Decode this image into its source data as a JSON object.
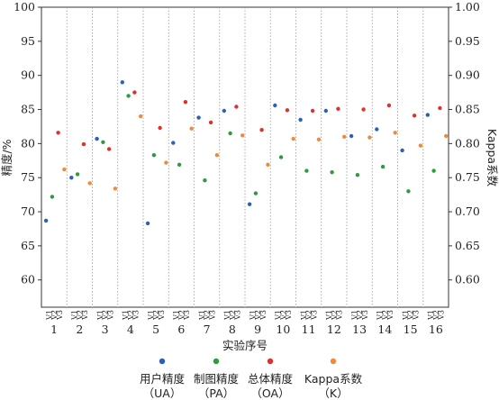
{
  "chart_data": {
    "type": "scatter",
    "xlabel": "实验序号",
    "ylabel_left": "精度/%",
    "ylabel_right": "Kappa系数",
    "ylim_left": [
      56,
      100
    ],
    "ylim_right": [
      0.56,
      1.0
    ],
    "yticks_left": [
      "60",
      "65",
      "70",
      "75",
      "80",
      "85",
      "90",
      "95",
      "100"
    ],
    "yticks_right": [
      "0.60",
      "0.65",
      "0.70",
      "0.75",
      "0.80",
      "0.85",
      "0.90",
      "0.95",
      "1.00"
    ],
    "group_labels": [
      "1",
      "2",
      "3",
      "4",
      "5",
      "6",
      "7",
      "8",
      "9",
      "10",
      "11",
      "12",
      "13",
      "14",
      "15",
      "16"
    ],
    "subcategories": [
      "V1",
      "V2",
      "V3"
    ],
    "grid": "vertical dotted separators between groups",
    "legend_position": "bottom",
    "series": [
      {
        "name": "用户精度",
        "abbr": "（UA）",
        "color": "#2b5fbf",
        "axis": "left",
        "values": [
          68.7,
          75.0,
          80.7,
          89.0,
          68.3,
          80.1,
          83.8,
          84.8,
          71.1,
          85.6,
          83.5,
          84.8,
          81.1,
          82.1,
          79.0,
          84.2
        ]
      },
      {
        "name": "制图精度",
        "abbr": "（PA）",
        "color": "#2e9a3e",
        "axis": "left",
        "values": [
          72.2,
          75.5,
          80.2,
          87.0,
          78.3,
          76.9,
          74.6,
          81.5,
          72.7,
          78.0,
          76.0,
          75.8,
          75.4,
          76.6,
          73.0,
          76.0
        ]
      },
      {
        "name": "总体精度",
        "abbr": "（OA）",
        "color": "#e0302a",
        "axis": "left",
        "values": [
          81.6,
          79.9,
          79.2,
          87.5,
          82.3,
          86.1,
          83.1,
          85.4,
          82.0,
          84.9,
          84.8,
          85.1,
          85.0,
          85.6,
          84.1,
          85.2
        ]
      },
      {
        "name": "Kappa系数",
        "abbr": "（K）",
        "color": "#ef8a3c",
        "axis": "right",
        "values": [
          0.762,
          0.742,
          0.734,
          0.84,
          0.772,
          0.822,
          0.783,
          0.812,
          0.769,
          0.807,
          0.806,
          0.81,
          0.809,
          0.816,
          0.797,
          0.811
        ]
      }
    ]
  }
}
